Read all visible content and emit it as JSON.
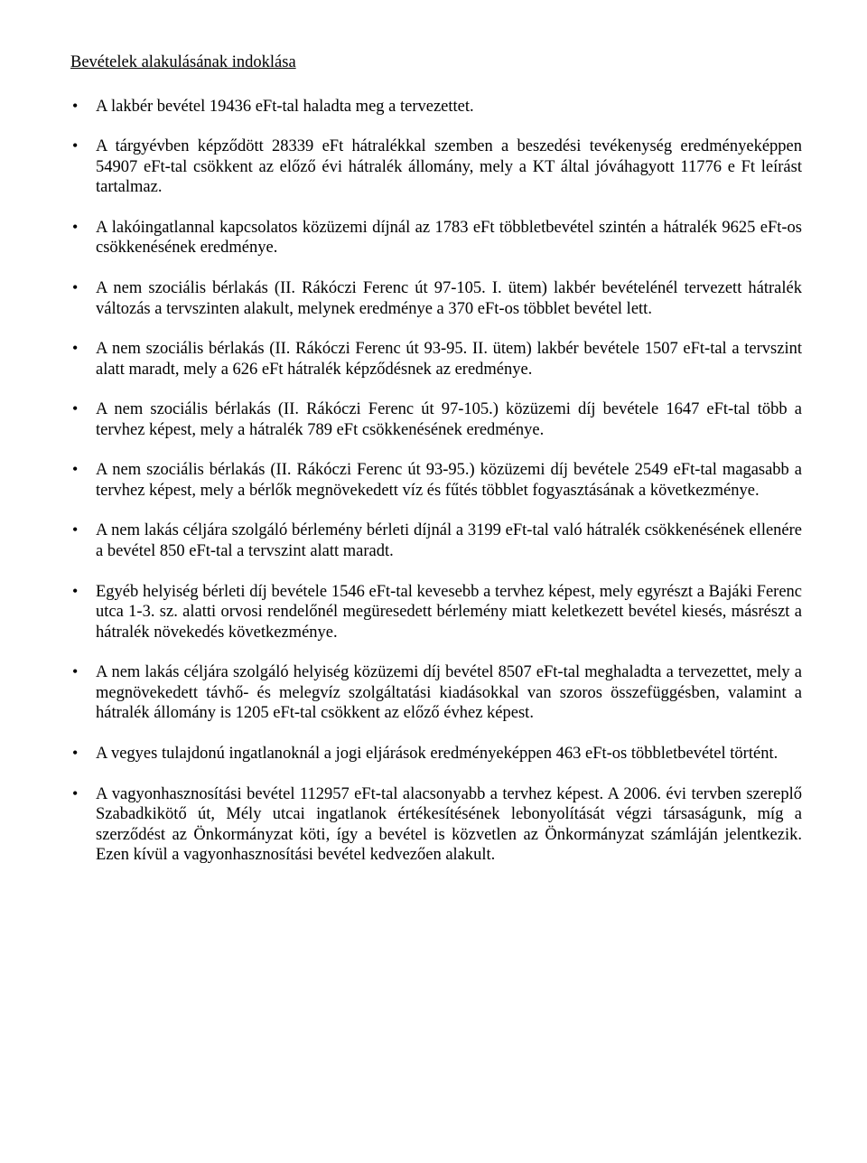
{
  "title": "Bevételek alakulásának indoklása",
  "items": [
    "A lakbér bevétel 19436 eFt-tal haladta meg a tervezettet.",
    "A tárgyévben képződött 28339 eFt hátralékkal szemben a beszedési tevékenység eredményeképpen 54907 eFt-tal csökkent az előző évi hátralék állomány, mely a KT által jóváhagyott 11776 e Ft leírást tartalmaz.",
    "A lakóingatlannal kapcsolatos közüzemi díjnál az 1783 eFt többletbevétel szintén a hátralék 9625 eFt-os csökkenésének eredménye.",
    "A nem szociális bérlakás (II. Rákóczi Ferenc út 97-105. I. ütem) lakbér bevételénél tervezett hátralék változás a tervszinten alakult, melynek eredménye a 370 eFt-os többlet bevétel lett.",
    "A nem szociális bérlakás (II. Rákóczi Ferenc út 93-95. II. ütem) lakbér bevétele 1507 eFt-tal a tervszint alatt maradt, mely a 626 eFt hátralék képződésnek az eredménye.",
    "A nem szociális bérlakás (II. Rákóczi Ferenc út 97-105.) közüzemi díj bevétele 1647 eFt-tal több a tervhez képest, mely a hátralék 789 eFt csökkenésének eredménye.",
    "A nem szociális bérlakás (II. Rákóczi Ferenc út 93-95.) közüzemi díj bevétele 2549 eFt-tal magasabb a tervhez képest, mely a bérlők megnövekedett víz és fűtés többlet fogyasztásának a következménye.",
    "A nem lakás céljára szolgáló bérlemény bérleti díjnál a 3199 eFt-tal való hátralék csökkenésének ellenére a bevétel 850 eFt-tal a tervszint alatt maradt.",
    "Egyéb helyiség bérleti díj bevétele 1546 eFt-tal kevesebb a tervhez képest, mely egyrészt a Bajáki Ferenc utca 1-3. sz. alatti orvosi rendelőnél megüresedett bérlemény miatt keletkezett bevétel kiesés, másrészt a hátralék növekedés következménye.",
    "A nem lakás céljára szolgáló helyiség közüzemi díj bevétel 8507 eFt-tal meghaladta a tervezettet, mely a megnövekedett távhő- és melegvíz szolgáltatási kiadásokkal van szoros összefüggésben, valamint a hátralék állomány is 1205 eFt-tal csökkent az előző évhez képest.",
    "A vegyes tulajdonú ingatlanoknál a jogi eljárások eredményeképpen 463 eFt-os többletbevétel történt.",
    "A vagyonhasznosítási bevétel 112957 eFt-tal alacsonyabb a tervhez képest. A 2006. évi tervben szereplő Szabadkikötő út, Mély utcai ingatlanok értékesítésének lebonyolítását végzi társaságunk, míg a szerződést az Önkormányzat köti, így a bevétel is közvetlen az Önkormányzat számláján jelentkezik. Ezen kívül a vagyonhasznosítási bevétel kedvezően alakult."
  ]
}
